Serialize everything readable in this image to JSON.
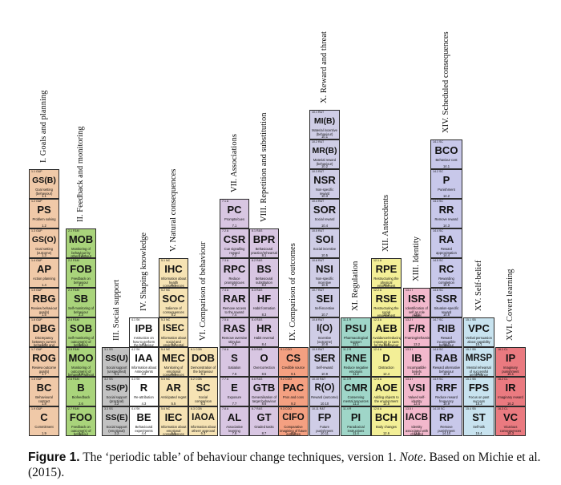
{
  "groups": [
    {
      "id": 1,
      "label": "I. Goals and planning",
      "color": "#f0c9a8",
      "items": [
        {
          "code": "1.9 G&P",
          "abbr": "C",
          "name": "Commitment",
          "num": "1.9"
        },
        {
          "code": "1.8 G&P",
          "abbr": "BC",
          "name": "Behavioural contract",
          "num": "1.8"
        },
        {
          "code": "1.7 G&P",
          "abbr": "ROG",
          "name": "Review outcome goal(s)",
          "num": "1.7"
        },
        {
          "code": "1.6 G&P",
          "abbr": "DBG",
          "name": "Discrepancy between current behaviour and goal",
          "num": "1.6"
        },
        {
          "code": "1.5 G&P",
          "abbr": "RBG",
          "name": "Review behaviour goal(s)",
          "num": "1.5"
        },
        {
          "code": "1.4 G&P",
          "abbr": "AP",
          "name": "Action planning",
          "num": "1.4"
        },
        {
          "code": "1.3 G&P",
          "abbr": "GS(O)",
          "name": "Goal setting (outcome)",
          "num": "1.3"
        },
        {
          "code": "1.2 G&P",
          "abbr": "PS",
          "name": "Problem solving",
          "num": "1.2"
        },
        {
          "code": "1.1 G&P",
          "abbr": "GS(B)",
          "name": "Goal setting (behaviour)",
          "num": "1.1"
        }
      ]
    },
    {
      "id": 2,
      "label": "II. Feedback and monitoring",
      "color": "#a9d47b",
      "items": [
        {
          "code": "2.7 F&M",
          "abbr": "FOO",
          "name": "Feedback on outcome(s) of behaviour",
          "num": "2.7"
        },
        {
          "code": "2.6 F&M",
          "abbr": "B",
          "name": "Biofeedback",
          "num": "2.6"
        },
        {
          "code": "2.5 F&M",
          "abbr": "MOO",
          "name": "Monitoring of outcome(s) of behaviour without feedback",
          "num": "2.5"
        },
        {
          "code": "2.4 F&M",
          "abbr": "SOB",
          "name": "Self-monitoring of outcome(s) of behaviour",
          "num": "2.4"
        },
        {
          "code": "2.3 F&M",
          "abbr": "SB",
          "name": "Self-monitoring of behaviour",
          "num": "2.3"
        },
        {
          "code": "2.2 F&M",
          "abbr": "FOB",
          "name": "Feedback on behaviour",
          "num": "2.2"
        },
        {
          "code": "2.1 F&M",
          "abbr": "MOB",
          "name": "Monitoring of behaviour by others without feedback",
          "num": "2.1"
        }
      ]
    },
    {
      "id": 3,
      "label": "III. Social support",
      "color": "#c2c2c2",
      "items": [
        {
          "code": "3.3 SS",
          "abbr": "SS(E)",
          "name": "Social support (emotional)",
          "num": "3.3"
        },
        {
          "code": "3.2 SS",
          "abbr": "SS(P)",
          "name": "Social support (practical)",
          "num": "3.2"
        },
        {
          "code": "3.1 SS",
          "abbr": "SS(U)",
          "name": "Social support (unspecified)",
          "num": "3.1"
        }
      ]
    },
    {
      "id": 4,
      "label": "IV. Shaping knowledge",
      "color": "#ffffff",
      "items": [
        {
          "code": "4.4 SK",
          "abbr": "BE",
          "name": "Behavioural experiments",
          "num": "4.4"
        },
        {
          "code": "4.3 SK",
          "abbr": "R",
          "name": "Re-attribution",
          "num": "4.3"
        },
        {
          "code": "4.2 SK",
          "abbr": "IAA",
          "name": "Information about Antecedents",
          "num": "4.2"
        },
        {
          "code": "4.1 SK",
          "abbr": "IPB",
          "name": "Instruction on how to perform the behaviour",
          "num": "4.1"
        }
      ]
    },
    {
      "id": 5,
      "label": "V. Natural consequences",
      "color": "#f6e3b4",
      "items": [
        {
          "code": "5.6 NC",
          "abbr": "IEC",
          "name": "Information about emotional consequences",
          "num": "5.6"
        },
        {
          "code": "5.5 NC",
          "abbr": "AR",
          "name": "Anticipated regret",
          "num": "5.5"
        },
        {
          "code": "5.4 NC",
          "abbr": "MEC",
          "name": "Monitoring of emotional consequences",
          "num": "5.4"
        },
        {
          "code": "5.3 NC",
          "abbr": "ISEC",
          "name": "Information about social and environmental consequences",
          "num": "5.3"
        },
        {
          "code": "5.2 NC",
          "abbr": "SOC",
          "name": "Salience of consequences",
          "num": "5.2"
        },
        {
          "code": "5.1 NC",
          "abbr": "IHC",
          "name": "Information about health consequences",
          "num": "5.1"
        }
      ]
    },
    {
      "id": 6,
      "label": "VI. Comparison of behaviour",
      "color": "#f6e3b4",
      "items": [
        {
          "code": "6.3 COB",
          "abbr": "IAOA",
          "name": "Information about others' approval",
          "num": "6.3"
        },
        {
          "code": "6.2 COB",
          "abbr": "SC",
          "name": "Social comparison",
          "num": "6.2"
        },
        {
          "code": "6.1 COB",
          "abbr": "DOB",
          "name": "Demonstration of the behaviour",
          "num": "6.1"
        }
      ]
    },
    {
      "id": 7,
      "label": "VII. Associations",
      "color": "#d8c6e2",
      "items": [
        {
          "code": "7.8 A",
          "abbr": "AL",
          "name": "Associative learning",
          "num": "7.8"
        },
        {
          "code": "7.7 A",
          "abbr": "E",
          "name": "Exposure",
          "num": "7.7"
        },
        {
          "code": "7.6 A",
          "abbr": "S",
          "name": "Satiation",
          "num": "7.6"
        },
        {
          "code": "7.5 A",
          "abbr": "RAS",
          "name": "Remove aversive stimulus",
          "num": "7.5"
        },
        {
          "code": "7.4 A",
          "abbr": "RAR",
          "name": "Remove access to the reward",
          "num": "7.4"
        },
        {
          "code": "7.3 A",
          "abbr": "RPC",
          "name": "Reduce prompts/cues",
          "num": "7.3"
        },
        {
          "code": "7.2 A",
          "abbr": "CSR",
          "name": "Cue signalling reward",
          "num": "7.2"
        },
        {
          "code": "7.1 A",
          "abbr": "PC",
          "name": "Prompts/cues",
          "num": "7.1"
        }
      ]
    },
    {
      "id": 8,
      "label": "VIII. Repetition and substitution",
      "color": "#d8c6e2",
      "items": [
        {
          "code": "8.7 R&S",
          "abbr": "GT",
          "name": "Graded tasks",
          "num": "8.7"
        },
        {
          "code": "8.6 R&S",
          "abbr": "GTB",
          "name": "Generalisation of target behaviour",
          "num": "8.6"
        },
        {
          "code": "8.5 R&S",
          "abbr": "O",
          "name": "Overcorrection",
          "num": "8.5"
        },
        {
          "code": "8.4 R&S",
          "abbr": "HR",
          "name": "Habit reversal",
          "num": "8.4"
        },
        {
          "code": "8.3 R&S",
          "abbr": "HF",
          "name": "Habit formation",
          "num": "8.3"
        },
        {
          "code": "8.2 R&S",
          "abbr": "BS",
          "name": "Behavioural substitution",
          "num": "8.2"
        },
        {
          "code": "8.1 R&S",
          "abbr": "BPR",
          "name": "Behavioural practice/rehearsal",
          "num": "8.1"
        }
      ]
    },
    {
      "id": 9,
      "label": "IX. Comparison of outcomes",
      "color": "#f4a081",
      "items": [
        {
          "code": "9.3 COO",
          "abbr": "CIFO",
          "name": "Comparative imagining of future outcomes",
          "num": "9.3"
        },
        {
          "code": "9.2 COO",
          "abbr": "PAC",
          "name": "Pros and cons",
          "num": "9.2"
        },
        {
          "code": "9.1 COO",
          "abbr": "CS",
          "name": "Credible source",
          "num": "9.1"
        }
      ]
    },
    {
      "id": 10,
      "label": "X. Reward and threat",
      "color": "#cfcde6",
      "items": [
        {
          "code": "10.11 R&T",
          "abbr": "FP",
          "name": "Future punishment",
          "num": "10.11"
        },
        {
          "code": "10.10 R&T",
          "abbr": "R(O)",
          "name": "Reward (outcome)",
          "num": "10.10"
        },
        {
          "code": "10.9 R&T",
          "abbr": "SER",
          "name": "Self-reward",
          "num": "10.9"
        },
        {
          "code": "10.8 R&T",
          "abbr": "I(O)",
          "name": "Incentive (outcome)",
          "num": "10.8"
        },
        {
          "code": "10.7 R&T",
          "abbr": "SEI",
          "name": "Self-incentive",
          "num": "10.7"
        },
        {
          "code": "10.6 R&T",
          "abbr": "NSI",
          "name": "Non-specific incentive",
          "num": "10.6"
        },
        {
          "code": "10.5 R&T",
          "abbr": "SOI",
          "name": "Social incentive",
          "num": "10.5"
        },
        {
          "code": "10.4 R&T",
          "abbr": "SOR",
          "name": "Social reward",
          "num": "10.4"
        },
        {
          "code": "10.3 R&T",
          "abbr": "NSR",
          "name": "Non-specific reward",
          "num": "10.3"
        },
        {
          "code": "10.2 R&T",
          "abbr": "MR(B)",
          "name": "Material reward (behaviour)",
          "num": "10.2"
        },
        {
          "code": "10.1 R&T",
          "abbr": "MI(B)",
          "name": "Material incentive (behaviour)",
          "num": "10.1"
        }
      ]
    },
    {
      "id": 11,
      "label": "XI. Regulation",
      "color": "#9fd6c8",
      "items": [
        {
          "code": "11.4 R",
          "abbr": "PI",
          "name": "Paradoxical instructions",
          "num": "11.4"
        },
        {
          "code": "11.3 R",
          "abbr": "CMR",
          "name": "Conserving mental resources",
          "num": "11.3"
        },
        {
          "code": "11.2 R",
          "abbr": "RNE",
          "name": "Reduce negative emotions",
          "num": "11.2"
        },
        {
          "code": "11.1 R",
          "abbr": "PSU",
          "name": "Pharmacological support",
          "num": "11.1"
        }
      ]
    },
    {
      "id": 12,
      "label": "XII. Antecedents",
      "color": "#f3ef97",
      "items": [
        {
          "code": "12.6 A",
          "abbr": "BCH",
          "name": "Body changes",
          "num": "12.6"
        },
        {
          "code": "12.5 A",
          "abbr": "AOE",
          "name": "Adding objects to the environment",
          "num": "12.5"
        },
        {
          "code": "12.4 A",
          "abbr": "D",
          "name": "Distraction",
          "num": "12.4"
        },
        {
          "code": "12.3 A",
          "abbr": "AEB",
          "name": "Avoidance/reducing exposure to cues for the behaviour",
          "num": "12.3"
        },
        {
          "code": "12.2 A",
          "abbr": "RSE",
          "name": "Restructuring the social environment",
          "num": "12.2"
        },
        {
          "code": "12.1 A",
          "abbr": "RPE",
          "name": "Restructuring the physical environment",
          "num": "12.1"
        }
      ]
    },
    {
      "id": 13,
      "label": "XIII. Identity",
      "color": "#f2b8cc",
      "items": [
        {
          "code": "13.5 I",
          "abbr": "IACB",
          "name": "Identity associated with changed behaviour",
          "num": "13.5"
        },
        {
          "code": "13.4 I",
          "abbr": "VSI",
          "name": "Valued self-identity",
          "num": "13.4"
        },
        {
          "code": "13.3 I",
          "abbr": "IB",
          "name": "Incompatible beliefs",
          "num": "13.3"
        },
        {
          "code": "13.2 I",
          "abbr": "F/R",
          "name": "Framing/reframing",
          "num": "13.2"
        },
        {
          "code": "13.1 I",
          "abbr": "ISR",
          "name": "Identification of self as role model",
          "num": "13.1"
        }
      ]
    },
    {
      "id": 14,
      "label": "XIV. Scheduled consequences",
      "color": "#c8c8ea",
      "items": [
        {
          "code": "14.10 SC",
          "abbr": "RP",
          "name": "Remove punishment",
          "num": "14.10"
        },
        {
          "code": "14.9 SC",
          "abbr": "RRF",
          "name": "Reduce reward frequency",
          "num": "14.9"
        },
        {
          "code": "14.8 SC",
          "abbr": "RAB",
          "name": "Reward alternative behaviour",
          "num": "14.8"
        },
        {
          "code": "14.7 SC",
          "abbr": "RIB",
          "name": "Reward incompatible behaviour",
          "num": "14.7"
        },
        {
          "code": "14.6 SC",
          "abbr": "SSR",
          "name": "Situation-specific reward",
          "num": "14.6"
        },
        {
          "code": "14.5 SC",
          "abbr": "RC",
          "name": "Rewarding completion",
          "num": "14.5"
        },
        {
          "code": "14.4 SC",
          "abbr": "RA",
          "name": "Reward approximation",
          "num": "14.4"
        },
        {
          "code": "14.3 SC",
          "abbr": "RR",
          "name": "Remove reward",
          "num": "14.3"
        },
        {
          "code": "14.2 SC",
          "abbr": "P",
          "name": "Punishment",
          "num": "14.2"
        },
        {
          "code": "14.1 SC",
          "abbr": "BCO",
          "name": "Behaviour cost",
          "num": "14.1"
        }
      ]
    },
    {
      "id": 15,
      "label": "XV. Self-belief",
      "color": "#c8e3ef",
      "items": [
        {
          "code": "15.4 SB",
          "abbr": "ST",
          "name": "Self-talk",
          "num": "15.4"
        },
        {
          "code": "15.3 SB",
          "abbr": "FPS",
          "name": "Focus on past success",
          "num": "15.3"
        },
        {
          "code": "15.2 SB",
          "abbr": "MRSP",
          "name": "Mental rehearsal of successful performance",
          "num": "15.2"
        },
        {
          "code": "15.1 SB",
          "abbr": "VPC",
          "name": "Verbal persuasion about capability",
          "num": "15.1"
        }
      ]
    },
    {
      "id": 16,
      "label": "XVI. Covert learning",
      "color": "#ea7a80",
      "items": [
        {
          "code": "16.3 CL",
          "abbr": "VC",
          "name": "Vicarious consequences",
          "num": "16.3"
        },
        {
          "code": "16.2 CL",
          "abbr": "IR",
          "name": "Imaginary reward",
          "num": "16.2"
        },
        {
          "code": "16.1 CL",
          "abbr": "IP",
          "name": "Imaginary punishment",
          "num": "16.1"
        }
      ]
    }
  ],
  "caption": {
    "label": "Figure 1.",
    "text": " The ‘periodic table’ of behaviour change techniques, version 1. ",
    "note_label": "Note",
    "note_text": ". Based on Michie et al. (2015)."
  }
}
